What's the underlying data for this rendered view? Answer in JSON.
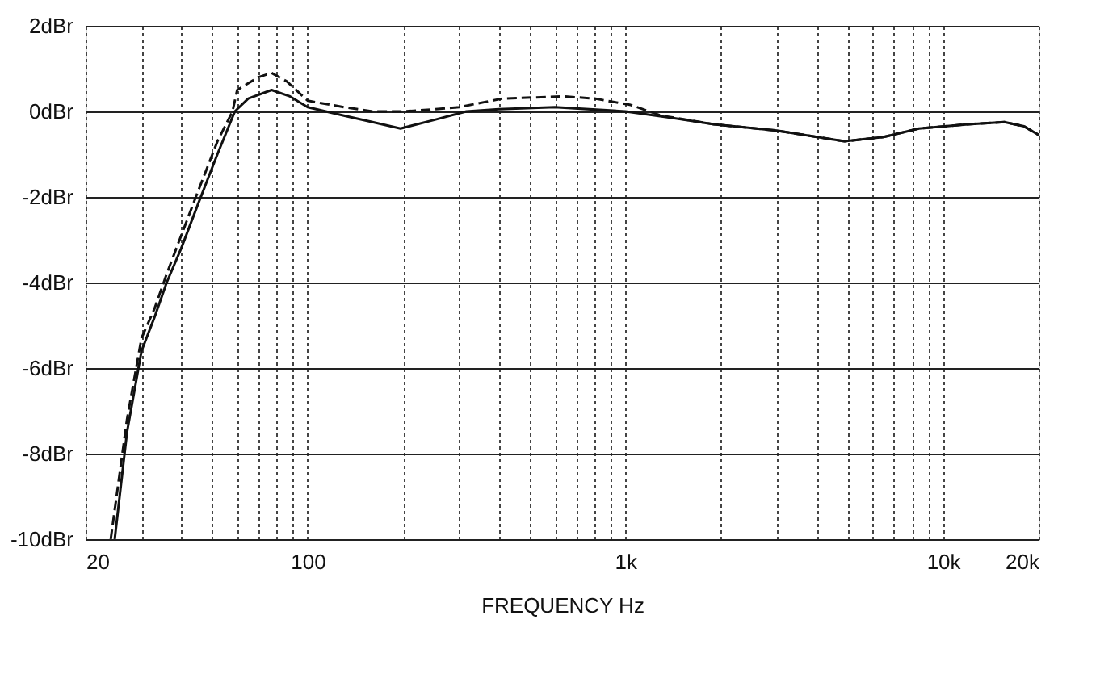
{
  "chart_data": {
    "type": "line",
    "xlabel": "FREQUENCY Hz",
    "log": "x",
    "grid": true,
    "marker": "none",
    "xlim": [
      20,
      20000
    ],
    "ylim": [
      -10,
      2
    ],
    "xticks": [
      20,
      {
        "value": 30,
        "label": null
      },
      {
        "value": 40,
        "label": null
      },
      {
        "value": 50,
        "label": null
      },
      {
        "value": 60,
        "label": null
      },
      {
        "value": 70,
        "label": null
      },
      {
        "value": 80,
        "label": null
      },
      {
        "value": 90,
        "label": null
      },
      100,
      {
        "value": 200,
        "label": null
      },
      {
        "value": 300,
        "label": null
      },
      {
        "value": 400,
        "label": null
      },
      {
        "value": 500,
        "label": null
      },
      {
        "value": 600,
        "label": null
      },
      {
        "value": 700,
        "label": null
      },
      {
        "value": 800,
        "label": null
      },
      {
        "value": 900,
        "label": null
      },
      {
        "value": 1000,
        "label": "1k"
      },
      {
        "value": 2000,
        "label": null
      },
      {
        "value": 3000,
        "label": null
      },
      {
        "value": 4000,
        "label": null
      },
      {
        "value": 5000,
        "label": null
      },
      {
        "value": 6000,
        "label": null
      },
      {
        "value": 7000,
        "label": null
      },
      {
        "value": 8000,
        "label": null
      },
      {
        "value": 9000,
        "label": null
      },
      {
        "value": 10000,
        "label": "10k"
      },
      {
        "value": 20000,
        "label": "20k"
      }
    ],
    "yticks": [
      {
        "value": 2,
        "label": "2dBr"
      },
      {
        "value": 0,
        "label": "0dBr"
      },
      {
        "value": -2,
        "label": "-2dBr"
      },
      {
        "value": -4,
        "label": "-4dBr"
      },
      {
        "value": -6,
        "label": "-6dBr"
      },
      {
        "value": -8,
        "label": "-8dBr"
      },
      {
        "value": -10,
        "label": "-10dBr"
      }
    ],
    "series": [
      {
        "color": "#111111",
        "line_style": "solid",
        "x": [
          24.7,
          27,
          30,
          33,
          36,
          40,
          45,
          52,
          59,
          65,
          77,
          88,
          100,
          130,
          160,
          196,
          250,
          316,
          400,
          600,
          1000,
          1400,
          1900,
          3000,
          4900,
          6500,
          8400,
          12000,
          15600,
          18000,
          20000
        ],
        "values": [
          -10,
          -7.5,
          -5.6,
          -4.8,
          -4,
          -3.2,
          -2.2,
          -1,
          0,
          0.3,
          0.5,
          0.35,
          0.1,
          -0.1,
          -0.25,
          -0.4,
          -0.2,
          0,
          0.05,
          0.1,
          0,
          -0.15,
          -0.3,
          -0.45,
          -0.7,
          -0.6,
          -0.4,
          -0.3,
          -0.25,
          -0.35,
          -0.55
        ]
      },
      {
        "color": "#111111",
        "line_style": "dashed",
        "x": [
          24,
          27,
          30,
          33,
          36,
          40,
          45,
          52,
          58,
          60,
          70,
          77,
          86,
          100,
          130,
          160,
          200,
          250,
          300,
          410,
          640,
          800,
          1040,
          1300,
          1900,
          3000,
          4900,
          6500,
          8400,
          12000,
          15600,
          18000,
          20000
        ],
        "values": [
          -10,
          -7.2,
          -5.3,
          -4.6,
          -3.8,
          -2.9,
          -1.9,
          -0.7,
          0,
          0.5,
          0.8,
          0.9,
          0.7,
          0.25,
          0.1,
          0,
          0,
          0.05,
          0.1,
          0.3,
          0.35,
          0.3,
          0.15,
          -0.1,
          -0.3,
          -0.45,
          -0.7,
          -0.6,
          -0.4,
          -0.3,
          -0.25,
          -0.35,
          -0.55
        ]
      }
    ]
  }
}
